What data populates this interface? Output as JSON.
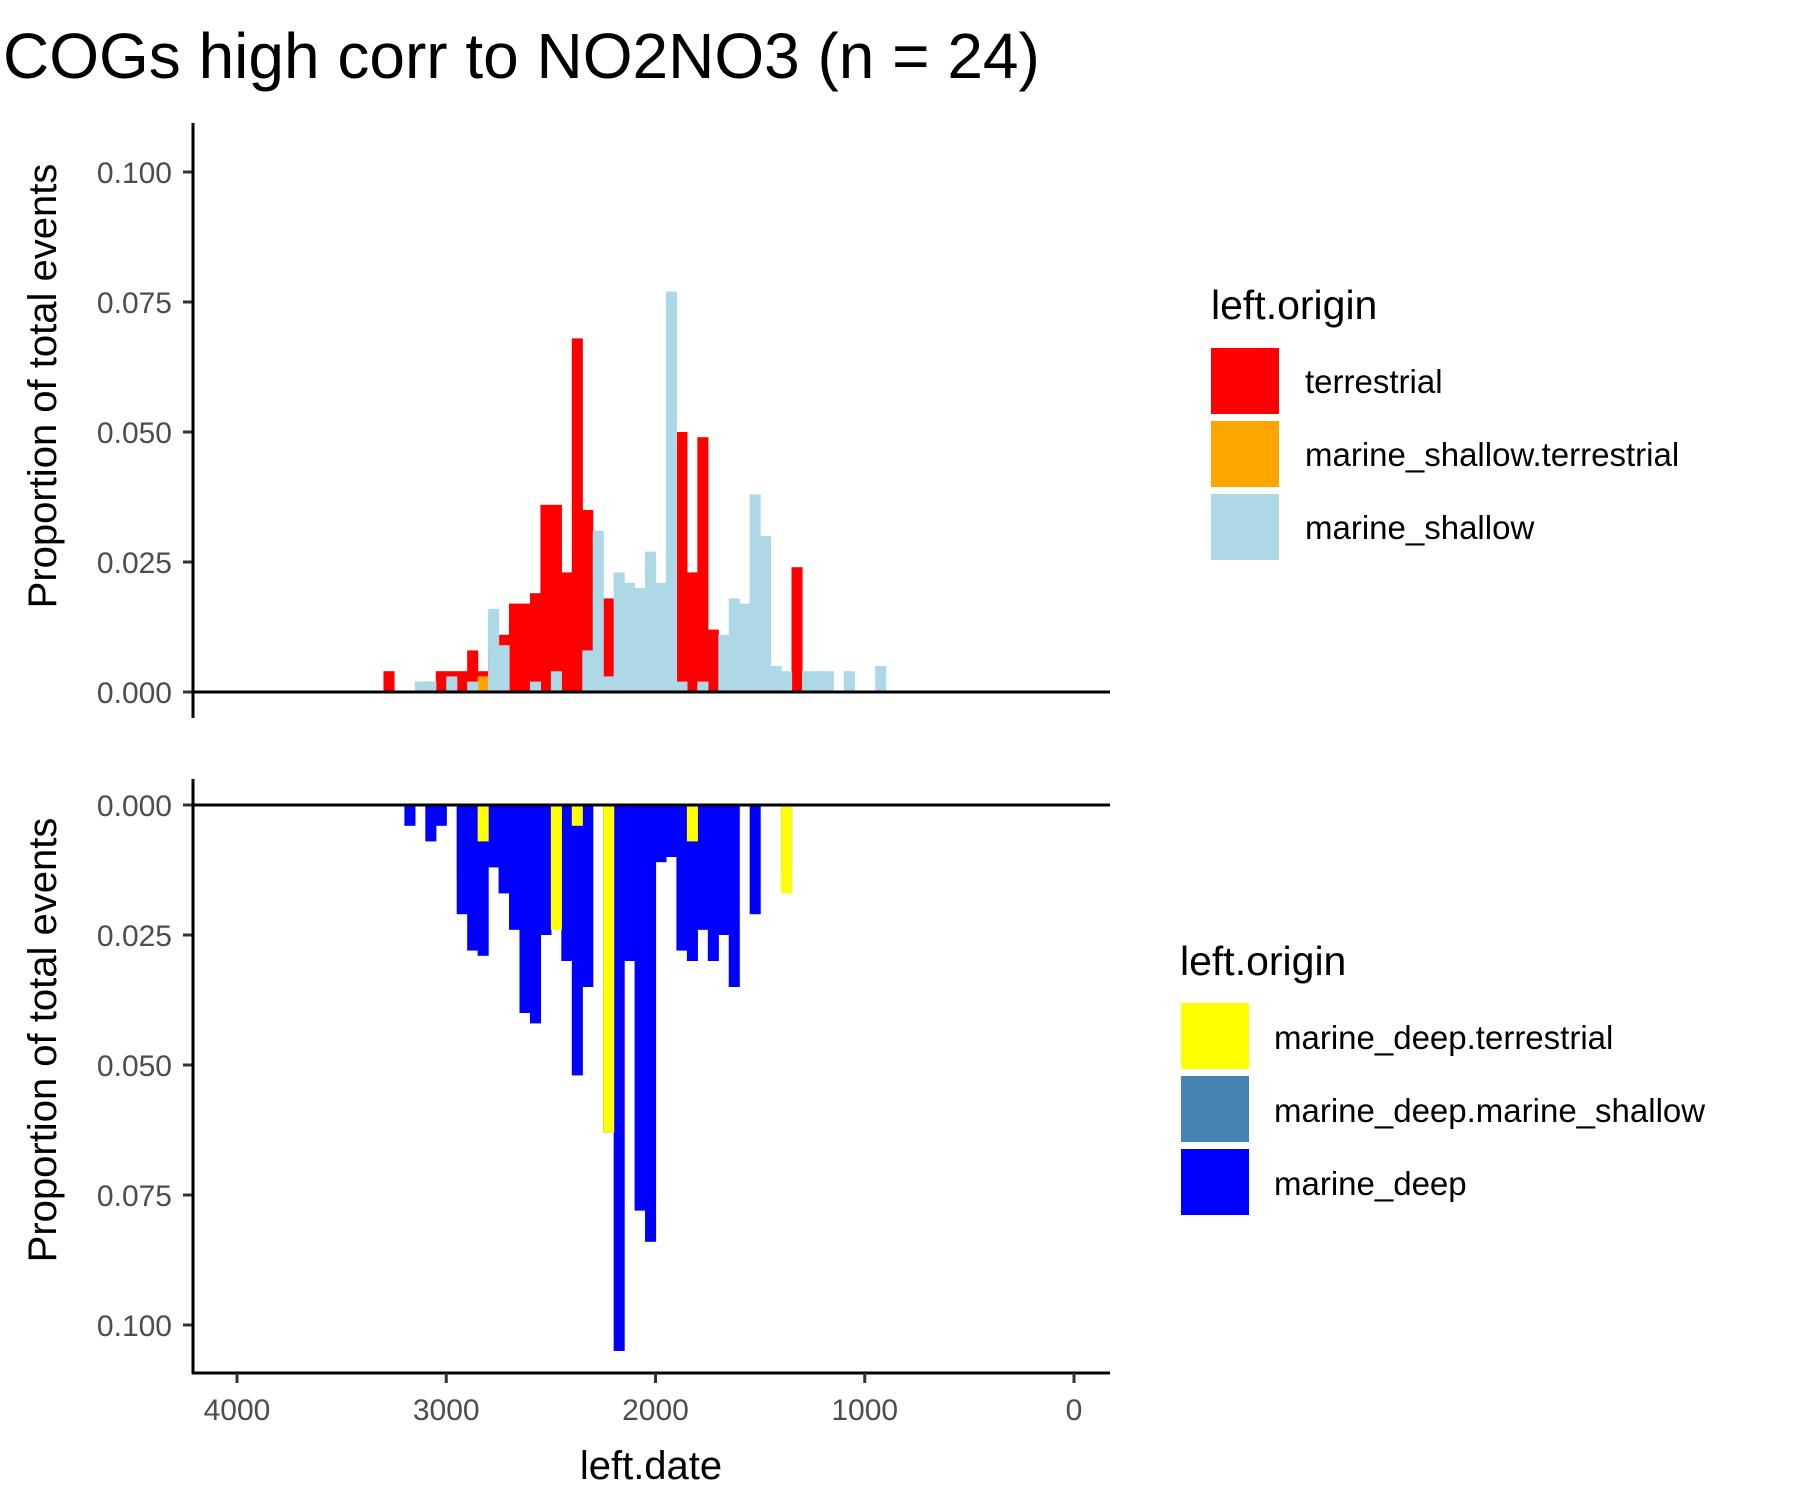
{
  "chart_data": {
    "type": "bar",
    "title": "COGs high corr to NO2NO3 (n = 24)",
    "xlabel": "left.date",
    "xlim": [
      4200,
      -200
    ],
    "xticks": [
      4000,
      3000,
      2000,
      1000,
      0
    ],
    "bin_width": 50,
    "panels": [
      {
        "name": "top",
        "ylabel": "Proportion of total events",
        "direction": "up",
        "ylim": [
          -0.005,
          0.11
        ],
        "yticks": [
          "0.000",
          "0.025",
          "0.050",
          "0.075",
          "0.100"
        ],
        "legend": {
          "title": "left.origin",
          "entries": [
            {
              "label": "terrestrial",
              "color": "#FF0000"
            },
            {
              "label": "marine_shallow.terrestrial",
              "color": "#FFA500"
            },
            {
              "label": "marine_shallow",
              "color": "#ADD8E6"
            }
          ]
        },
        "series": [
          {
            "name": "terrestrial",
            "color": "#FF0000",
            "x": [
              3275,
              3075,
              3025,
              2975,
              2925,
              2875,
              2825,
              2775,
              2725,
              2675,
              2625,
              2575,
              2525,
              2475,
              2425,
              2375,
              2325,
              2275,
              2225,
              2175,
              2125,
              2075,
              1975,
              1925,
              1875,
              1825,
              1775,
              1725,
              1675,
              1325
            ],
            "values": [
              0.004,
              0.002,
              0.004,
              0.004,
              0.004,
              0.008,
              0.004,
              0.008,
              0.011,
              0.017,
              0.017,
              0.019,
              0.036,
              0.036,
              0.023,
              0.068,
              0.035,
              0.008,
              0.018,
              0.006,
              0.014,
              0.008,
              0.01,
              0.011,
              0.05,
              0.023,
              0.049,
              0.012,
              0.004,
              0.024
            ]
          },
          {
            "name": "marine_shallow.terrestrial",
            "color": "#FFA500",
            "x": [
              2825,
              2275
            ],
            "values": [
              0.003,
              0.002
            ]
          },
          {
            "name": "marine_shallow",
            "color": "#ADD8E6",
            "x": [
              3125,
              3075,
              2975,
              2875,
              2775,
              2725,
              2575,
              2475,
              2325,
              2275,
              2225,
              2175,
              2125,
              2075,
              2025,
              1975,
              1925,
              1875,
              1775,
              1675,
              1625,
              1575,
              1525,
              1475,
              1425,
              1375,
              1275,
              1225,
              1175,
              1075,
              925
            ],
            "values": [
              0.002,
              0.002,
              0.003,
              0.002,
              0.016,
              0.009,
              0.002,
              0.004,
              0.008,
              0.031,
              0.003,
              0.023,
              0.021,
              0.02,
              0.027,
              0.021,
              0.077,
              0.002,
              0.002,
              0.011,
              0.018,
              0.017,
              0.038,
              0.03,
              0.005,
              0.004,
              0.004,
              0.004,
              0.004,
              0.004,
              0.005
            ]
          }
        ]
      },
      {
        "name": "bottom",
        "ylabel": "Proportion of total events",
        "direction": "down",
        "ylim": [
          -0.005,
          0.11
        ],
        "yticks": [
          "0.000",
          "0.025",
          "0.050",
          "0.075",
          "0.100"
        ],
        "legend": {
          "title": "left.origin",
          "entries": [
            {
              "label": "marine_deep.terrestrial",
              "color": "#FFFF00"
            },
            {
              "label": "marine_deep.marine_shallow",
              "color": "#4682B4"
            },
            {
              "label": "marine_deep",
              "color": "#0000FF"
            }
          ]
        },
        "series": [
          {
            "name": "marine_deep.marine_shallow",
            "color": "#4682B4",
            "x": [
              2925
            ],
            "values": [
              0.014
            ]
          },
          {
            "name": "marine_deep",
            "color": "#0000FF",
            "x": [
              3175,
              3075,
              3025,
              2925,
              2875,
              2825,
              2775,
              2725,
              2675,
              2625,
              2575,
              2525,
              2475,
              2425,
              2375,
              2325,
              2225,
              2175,
              2125,
              2075,
              2025,
              1975,
              1925,
              1875,
              1825,
              1775,
              1725,
              1675,
              1625,
              1525,
              1375
            ],
            "values": [
              0.004,
              0.007,
              0.004,
              0.021,
              0.028,
              0.029,
              0.012,
              0.017,
              0.024,
              0.04,
              0.042,
              0.025,
              0.004,
              0.03,
              0.052,
              0.035,
              0.063,
              0.105,
              0.03,
              0.078,
              0.084,
              0.011,
              0.01,
              0.028,
              0.03,
              0.024,
              0.03,
              0.025,
              0.035,
              0.021,
              0.012
            ]
          },
          {
            "name": "marine_deep.terrestrial",
            "color": "#FFFF00",
            "x": [
              2825,
              2475,
              2375,
              2225,
              2125,
              1825,
              1375
            ],
            "values": [
              0.007,
              0.024,
              0.004,
              0.063,
              0.0,
              0.007,
              0.017
            ],
            "offsets": [
              0.0,
              0.0,
              0.0,
              0.0,
              0.0,
              0.0,
              0.0
            ]
          }
        ]
      }
    ]
  }
}
